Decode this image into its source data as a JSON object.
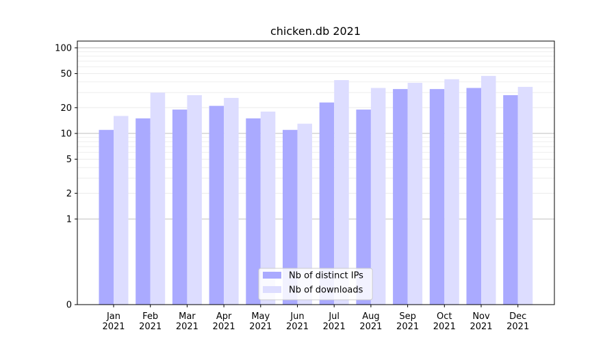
{
  "chart_data": {
    "type": "bar",
    "title": "chicken.db 2021",
    "xlabel": "",
    "ylabel": "",
    "yscale": "symlog",
    "ylim": [
      0,
      120
    ],
    "yticks": [
      0,
      1,
      2,
      5,
      10,
      20,
      50,
      100
    ],
    "ytick_labels": [
      "0",
      "1",
      "2",
      "5",
      "10",
      "20",
      "50",
      "100"
    ],
    "grid": "horizontal",
    "legend_position": "bottom-center",
    "categories": [
      "Jan\n2021",
      "Feb\n2021",
      "Mar\n2021",
      "Apr\n2021",
      "May\n2021",
      "Jun\n2021",
      "Jul\n2021",
      "Aug\n2021",
      "Sep\n2021",
      "Oct\n2021",
      "Nov\n2021",
      "Dec\n2021"
    ],
    "series": [
      {
        "name": "Nb of distinct IPs",
        "color": "#aaaaff",
        "values": [
          11,
          15,
          19,
          21,
          15,
          11,
          23,
          19,
          33,
          33,
          34,
          28
        ]
      },
      {
        "name": "Nb of downloads",
        "color": "#ddddff",
        "values": [
          16,
          30,
          28,
          26,
          18,
          13,
          42,
          34,
          39,
          43,
          47,
          35
        ]
      }
    ]
  }
}
